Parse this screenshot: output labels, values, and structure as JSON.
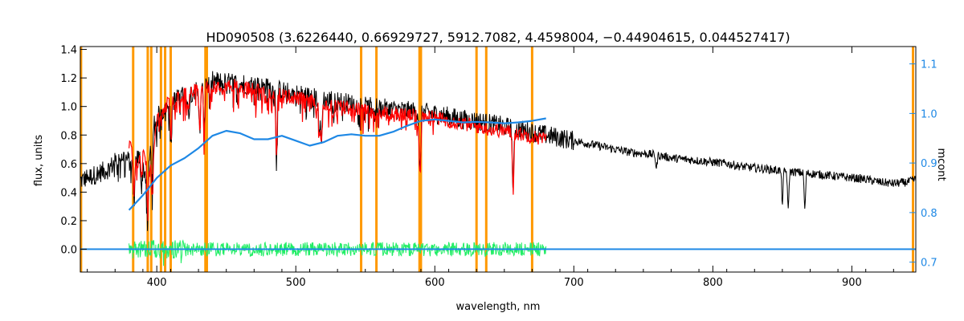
{
  "chart_data": {
    "type": "line",
    "title": "HD090508    (3.6226440, 0.66929727, 5912.7082, 4.4598004, −0.44904615, 0.044527417)",
    "xlabel": "wavelength, nm",
    "ylabel": "flux, units",
    "y2label": "mcont",
    "xlim": [
      345,
      946
    ],
    "ylim": [
      -0.16,
      1.42
    ],
    "y2lim": [
      0.68,
      1.135
    ],
    "x_ticks": [
      400,
      500,
      600,
      700,
      800,
      900
    ],
    "y_ticks": [
      0.0,
      0.2,
      0.4,
      0.6,
      0.8,
      1.0,
      1.2,
      1.4
    ],
    "y_tick_labels": [
      "0.0",
      "0.2",
      "0.4",
      "0.6",
      "0.8",
      "1.0",
      "1.2",
      "1.4"
    ],
    "y2_ticks": [
      0.7,
      0.8,
      0.9,
      1.0,
      1.1
    ],
    "y2_tick_labels": [
      "0.7",
      "0.8",
      "0.9",
      "1.0",
      "1.1"
    ],
    "grid": false,
    "colors": {
      "observed": "#000000",
      "model": "#ff0000",
      "residual": "#22ee66",
      "continuum": "#1e88e5",
      "masks": "#ff9900"
    },
    "mask_lines": [
      345.5,
      383,
      393.5,
      396,
      403,
      406,
      410,
      435,
      436,
      547,
      558,
      589,
      590,
      630,
      637,
      670,
      944
    ],
    "series": [
      {
        "key": "observed",
        "x": [
          345,
          355,
          365,
          375,
          382,
          388,
          393,
          397,
          402,
          410,
          420,
          430,
          440,
          450,
          460,
          470,
          480,
          490,
          500,
          510,
          520,
          530,
          540,
          550,
          560,
          570,
          580,
          590,
          600,
          610,
          620,
          630,
          640,
          650,
          660,
          670,
          680,
          690,
          700,
          710,
          720,
          730,
          740,
          750,
          760,
          770,
          780,
          790,
          800,
          810,
          820,
          830,
          840,
          850,
          860,
          870,
          880,
          890,
          900,
          910,
          920,
          930,
          940,
          946
        ],
        "y": [
          0.48,
          0.52,
          0.56,
          0.66,
          0.6,
          0.65,
          0.48,
          0.85,
          0.95,
          1.03,
          1.08,
          1.12,
          1.18,
          1.17,
          1.16,
          1.15,
          1.13,
          1.11,
          1.09,
          1.07,
          1.05,
          1.04,
          1.02,
          1.0,
          0.99,
          0.98,
          0.97,
          0.96,
          0.95,
          0.93,
          0.91,
          0.9,
          0.88,
          0.86,
          0.84,
          0.82,
          0.8,
          0.78,
          0.76,
          0.74,
          0.72,
          0.7,
          0.68,
          0.67,
          0.66,
          0.64,
          0.63,
          0.62,
          0.61,
          0.6,
          0.58,
          0.57,
          0.56,
          0.55,
          0.54,
          0.53,
          0.52,
          0.51,
          0.5,
          0.49,
          0.47,
          0.46,
          0.47,
          0.49
        ]
      },
      {
        "key": "model",
        "x": [
          380,
          385,
          390,
          395,
          400,
          405,
          410,
          420,
          430,
          440,
          450,
          460,
          470,
          480,
          490,
          500,
          510,
          520,
          530,
          540,
          550,
          560,
          570,
          580,
          590,
          600,
          610,
          620,
          630,
          640,
          650,
          660,
          670,
          680
        ],
        "y": [
          0.75,
          0.6,
          0.7,
          0.55,
          0.9,
          0.98,
          1.05,
          1.08,
          1.12,
          1.15,
          1.15,
          1.14,
          1.12,
          1.1,
          1.08,
          1.06,
          1.04,
          1.02,
          1.0,
          0.99,
          0.97,
          0.96,
          0.95,
          0.94,
          0.93,
          0.92,
          0.9,
          0.88,
          0.86,
          0.84,
          0.83,
          0.81,
          0.79,
          0.77
        ]
      },
      {
        "key": "continuum",
        "x": [
          380,
          390,
          400,
          410,
          420,
          430,
          440,
          450,
          460,
          470,
          480,
          490,
          500,
          510,
          520,
          530,
          540,
          550,
          560,
          570,
          580,
          590,
          600,
          610,
          620,
          630,
          640,
          650,
          660,
          670,
          680
        ],
        "y2": [
          0.805,
          0.835,
          0.87,
          0.895,
          0.91,
          0.93,
          0.955,
          0.965,
          0.96,
          0.948,
          0.948,
          0.955,
          0.945,
          0.935,
          0.942,
          0.955,
          0.958,
          0.955,
          0.955,
          0.963,
          0.975,
          0.985,
          0.988,
          0.985,
          0.982,
          0.983,
          0.982,
          0.98,
          0.982,
          0.985,
          0.99
        ]
      },
      {
        "key": "residual",
        "x_range": [
          380,
          680
        ],
        "y_center": 0.0,
        "amplitude": 0.05
      }
    ]
  }
}
